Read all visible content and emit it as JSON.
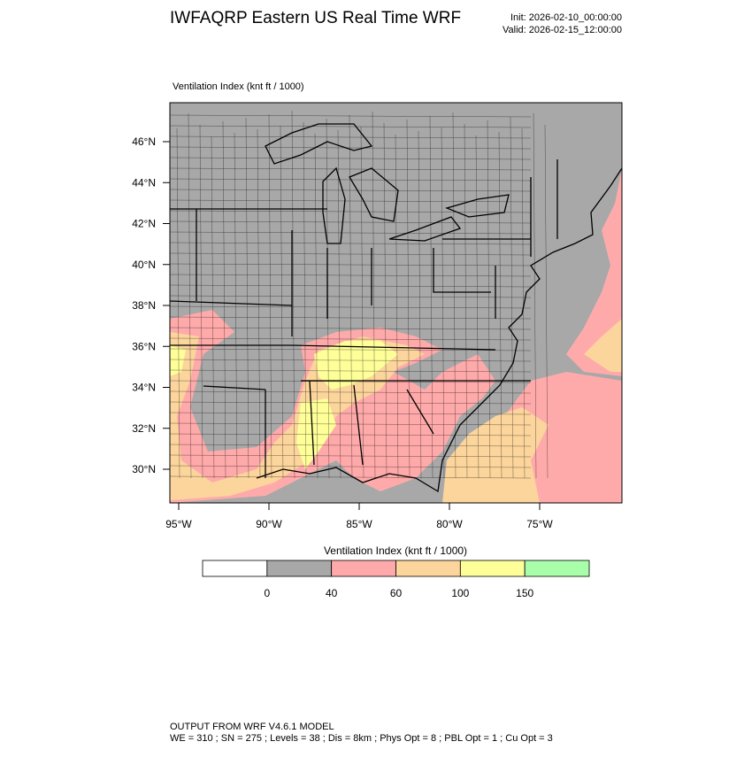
{
  "header": {
    "title": "IWFAQRP Eastern US Real Time WRF",
    "init": "Init: 2026-02-10_00:00:00",
    "valid": "Valid: 2026-02-15_12:00:00"
  },
  "map": {
    "subtitle": "Ventilation Index   (knt ft / 1000)",
    "lat_labels": [
      "46°N",
      "44°N",
      "42°N",
      "40°N",
      "38°N",
      "36°N",
      "34°N",
      "32°N",
      "30°N"
    ],
    "lon_labels": [
      "95°W",
      "90°W",
      "85°W",
      "80°W",
      "75°W"
    ],
    "land_color": "#a8a8a8",
    "low_color": "#ffaaaa",
    "mid_color": "#fcd59c",
    "high_color": "#ffff99"
  },
  "legend": {
    "title": "Ventilation Index  (knt ft / 1000)",
    "colors": [
      "#ffffff",
      "#a8a8a8",
      "#ffaaaa",
      "#fcd59c",
      "#ffff99",
      "#a9ffa9"
    ],
    "ticks": [
      "0",
      "40",
      "60",
      "100",
      "150"
    ]
  },
  "footer": {
    "line1": "OUTPUT FROM WRF V4.6.1 MODEL",
    "line2": "WE = 310 ; SN = 275 ; Levels = 38 ; Dis = 8km ; Phys Opt = 8 ; PBL Opt = 1 ; Cu Opt = 3"
  }
}
